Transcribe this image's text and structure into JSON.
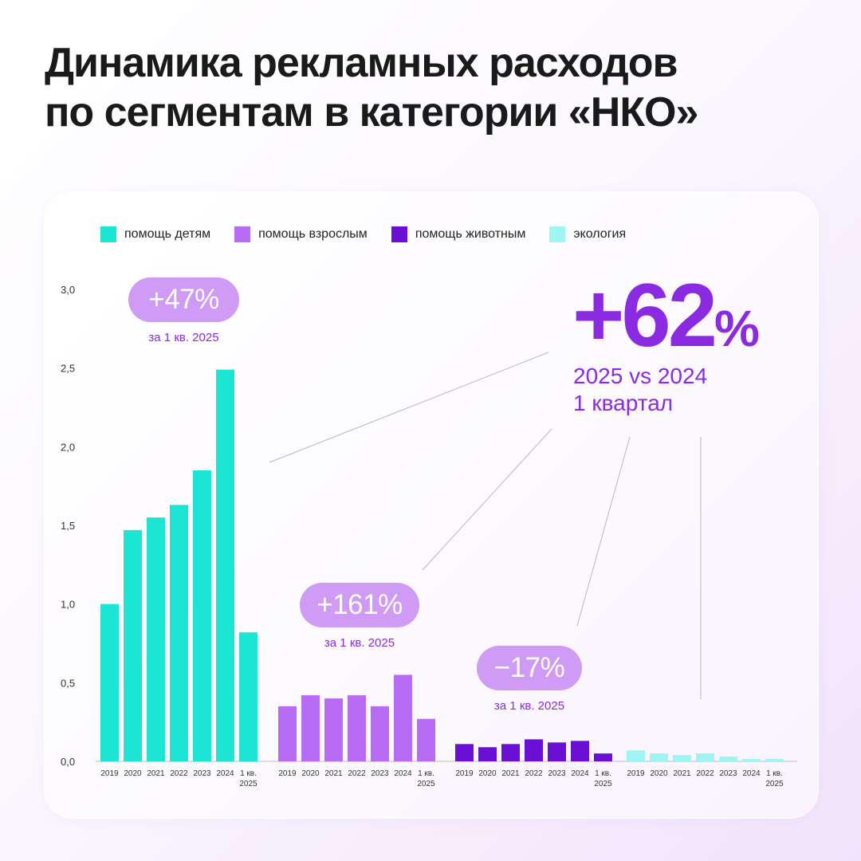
{
  "title": {
    "line1": "Динамика рекламных расходов",
    "line2": "по сегментам в категории «НКО»"
  },
  "colors": {
    "accent": "#8a2be2",
    "pill": "#cf9bf4"
  },
  "chart_data": {
    "type": "bar",
    "categories": [
      "2019",
      "2020",
      "2021",
      "2022",
      "2023",
      "2024",
      "1 кв. 2025"
    ],
    "category_lines": [
      [
        "2019"
      ],
      [
        "2020"
      ],
      [
        "2021"
      ],
      [
        "2022"
      ],
      [
        "2023"
      ],
      [
        "2024"
      ],
      [
        "1 кв.",
        "2025"
      ]
    ],
    "ylim": [
      0,
      3.0
    ],
    "y_ticks": [
      "0,0",
      "0,5",
      "1,0",
      "1,5",
      "2,0",
      "2,5",
      "3,0"
    ],
    "legend_position": "top",
    "series": [
      {
        "name": "помощь детям",
        "color": "#1de5d4",
        "values": [
          1.0,
          1.47,
          1.55,
          1.63,
          1.85,
          2.49,
          0.82
        ]
      },
      {
        "name": "помощь взрослым",
        "color": "#b86cf5",
        "values": [
          0.35,
          0.42,
          0.4,
          0.42,
          0.35,
          0.55,
          0.27
        ]
      },
      {
        "name": "помощь животным",
        "color": "#6c0fd6",
        "values": [
          0.11,
          0.09,
          0.11,
          0.14,
          0.12,
          0.13,
          0.05
        ]
      },
      {
        "name": "экология",
        "color": "#9ef5f3",
        "values": [
          0.07,
          0.05,
          0.04,
          0.05,
          0.03,
          0.015,
          0.015
        ]
      }
    ],
    "annotations": [
      {
        "label": "+47%",
        "note": "за 1 кв. 2025"
      },
      {
        "label": "+161%",
        "note": "за 1 кв. 2025"
      },
      {
        "label": "−17%",
        "note": "за 1 кв. 2025"
      }
    ],
    "total": {
      "number": "+62",
      "percent": "%",
      "line1": "2025 vs 2024",
      "line2": "1 квартал"
    }
  }
}
